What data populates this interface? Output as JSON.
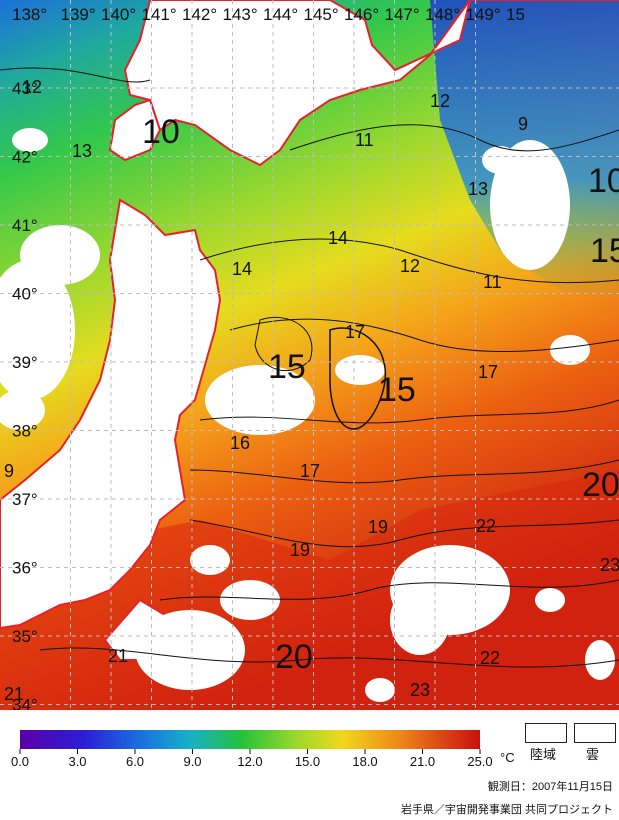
{
  "map": {
    "longitude_labels": [
      "138°",
      "139°",
      "140°",
      "141°",
      "142°",
      "143°",
      "144°",
      "145°",
      "146°",
      "147°",
      "148°",
      "149°",
      "15"
    ],
    "latitude_labels": [
      "43°",
      "42°",
      "41°",
      "40°",
      "39°",
      "38°",
      "37°",
      "36°",
      "35°",
      "34°"
    ],
    "contour_labels": [
      {
        "text": "12",
        "size": "s"
      },
      {
        "text": "13",
        "size": "s"
      },
      {
        "text": "10",
        "size": "l"
      },
      {
        "text": "11",
        "size": "s"
      },
      {
        "text": "12",
        "size": "s"
      },
      {
        "text": "9",
        "size": "s"
      },
      {
        "text": "10",
        "size": "l"
      },
      {
        "text": "13",
        "size": "s"
      },
      {
        "text": "14",
        "size": "s"
      },
      {
        "text": "14",
        "size": "s"
      },
      {
        "text": "12",
        "size": "s"
      },
      {
        "text": "11",
        "size": "s"
      },
      {
        "text": "15",
        "size": "l"
      },
      {
        "text": "17",
        "size": "s"
      },
      {
        "text": "15",
        "size": "l"
      },
      {
        "text": "15",
        "size": "l"
      },
      {
        "text": "17",
        "size": "s"
      },
      {
        "text": "16",
        "size": "s"
      },
      {
        "text": "17",
        "size": "s"
      },
      {
        "text": "20",
        "size": "l"
      },
      {
        "text": "19",
        "size": "s"
      },
      {
        "text": "22",
        "size": "s"
      },
      {
        "text": "19",
        "size": "s"
      },
      {
        "text": "23",
        "size": "s"
      },
      {
        "text": "21",
        "size": "s"
      },
      {
        "text": "20",
        "size": "l"
      },
      {
        "text": "22",
        "size": "s"
      },
      {
        "text": "23",
        "size": "s"
      },
      {
        "text": "9",
        "size": "s"
      },
      {
        "text": "21",
        "size": "s"
      }
    ]
  },
  "colorbar": {
    "ticks": [
      "0.0",
      "3.0",
      "6.0",
      "9.0",
      "12.0",
      "15.0",
      "18.0",
      "21.0",
      "25.0"
    ],
    "unit": "°C"
  },
  "legend_keys": {
    "land": "陸域",
    "cloud": "雲"
  },
  "footer": {
    "observation_date": "観測日：2007年11月15日",
    "credit": "岩手県／宇宙開発事業団 共同プロジェクト"
  }
}
